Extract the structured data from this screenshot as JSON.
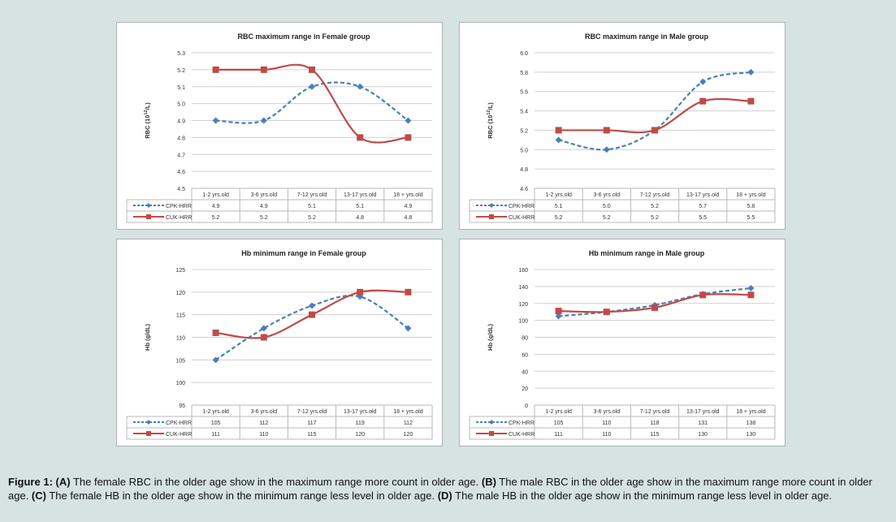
{
  "chart_data": [
    {
      "type": "line",
      "title": "RBC  maximum range in Female group",
      "ylabel": "RBC  (10^12/L)",
      "ylabel_base": "RBC  (10",
      "ylabel_sup": "12",
      "ylabel_end": "/L)",
      "ylim": [
        4.5,
        5.3
      ],
      "yticks": [
        "4.5",
        "4.6",
        "4.7",
        "4.8",
        "4.9",
        "5.0",
        "5.1",
        "5.2",
        "5.3"
      ],
      "categories": [
        "1-2 yrs.old",
        "3-6 yrs.old",
        "7-12 yrs.old",
        "13-17 yrs.old",
        "18 + yrs.old"
      ],
      "grid": true,
      "series": [
        {
          "name": "CPK-HRR",
          "color": "#4a7ebb",
          "dashed": true,
          "marker": "diamond",
          "values": [
            4.9,
            4.9,
            5.1,
            5.1,
            4.9
          ],
          "labels": [
            "4.9",
            "4.9",
            "5.1",
            "5.1",
            "4.9"
          ]
        },
        {
          "name": "CUK-HRR",
          "color": "#be4b48",
          "dashed": false,
          "marker": "square",
          "values": [
            5.2,
            5.2,
            5.2,
            4.8,
            4.8
          ],
          "labels": [
            "5.2",
            "5.2",
            "5.2",
            "4.8",
            "4.8"
          ]
        }
      ]
    },
    {
      "type": "line",
      "title": "RBC maximum range in  Male group",
      "ylabel": "RBC (10^12/L)",
      "ylabel_base": "RBC (10",
      "ylabel_sup": "12",
      "ylabel_end": "/L)",
      "ylim": [
        4.6,
        6.0
      ],
      "yticks": [
        "4.6",
        "4.8",
        "5.0",
        "5.2",
        "5.4",
        "5.6",
        "5.8",
        "6.0"
      ],
      "categories": [
        "1-2 yrs.old",
        "3-6 yrs.old",
        "7-12 yrs.old",
        "13-17 yrs.old",
        "18 + yrs.old"
      ],
      "grid": true,
      "series": [
        {
          "name": "CPK-HRR",
          "color": "#4a7ebb",
          "dashed": true,
          "marker": "diamond",
          "values": [
            5.1,
            5.0,
            5.2,
            5.7,
            5.8
          ],
          "labels": [
            "5.1",
            "5.0",
            "5.2",
            "5.7",
            "5.8"
          ]
        },
        {
          "name": "CUK-HRR",
          "color": "#be4b48",
          "dashed": false,
          "marker": "square",
          "values": [
            5.2,
            5.2,
            5.2,
            5.5,
            5.5
          ],
          "labels": [
            "5.2",
            "5.2",
            "5.2",
            "5.5",
            "5.5"
          ]
        }
      ]
    },
    {
      "type": "line",
      "title": "Hb minimum range in Female group",
      "ylabel": "Hb  (g/dL)",
      "ylabel_base": "Hb  (g/dL)",
      "ylabel_sup": "",
      "ylabel_end": "",
      "ylim": [
        95,
        125
      ],
      "yticks": [
        "95",
        "100",
        "105",
        "110",
        "115",
        "120",
        "125"
      ],
      "categories": [
        "1-2 yrs.old",
        "3-6 yrs.old",
        "7-12 yrs.old",
        "13-17 yrs.old",
        "18 + yrs.old"
      ],
      "grid": true,
      "series": [
        {
          "name": "CPK-HRR",
          "color": "#4a7ebb",
          "dashed": true,
          "marker": "diamond",
          "values": [
            105,
            112,
            117,
            119,
            112
          ],
          "labels": [
            "105",
            "112",
            "117",
            "119",
            "112"
          ]
        },
        {
          "name": "CUK-HRR",
          "color": "#be4b48",
          "dashed": false,
          "marker": "square",
          "values": [
            111,
            110,
            115,
            120,
            120
          ],
          "labels": [
            "111",
            "110",
            "115",
            "120",
            "120"
          ]
        }
      ]
    },
    {
      "type": "line",
      "title": "Hb minimum range in Male group",
      "ylabel": "Hb (g/dL)",
      "ylabel_base": "Hb (g/dL)",
      "ylabel_sup": "",
      "ylabel_end": "",
      "ylim": [
        0,
        160
      ],
      "yticks": [
        "0",
        "20",
        "40",
        "60",
        "80",
        "100",
        "120",
        "140",
        "160"
      ],
      "categories": [
        "1-2 yrs.old",
        "3-6 yrs.old",
        "7-12 yrs.old",
        "13-17 yrs.old",
        "18 + yrs.old"
      ],
      "grid": true,
      "series": [
        {
          "name": "CPK-HRR",
          "color": "#4a7ebb",
          "dashed": true,
          "marker": "diamond",
          "values": [
            105,
            110,
            118,
            131,
            138
          ],
          "labels": [
            "105",
            "110",
            "118",
            "131",
            "138"
          ]
        },
        {
          "name": "CUK-HRR",
          "color": "#be4b48",
          "dashed": false,
          "marker": "square",
          "values": [
            111,
            110,
            115,
            130,
            130
          ],
          "labels": [
            "111",
            "110",
            "115",
            "130",
            "130"
          ]
        }
      ]
    }
  ],
  "caption": {
    "parts": [
      {
        "b": true,
        "t": "Figure 1: "
      },
      {
        "b": true,
        "t": "(A)"
      },
      {
        "b": false,
        "t": " The female RBC in the older age show  in the maximum range more count in older age. "
      },
      {
        "b": true,
        "t": "(B)"
      },
      {
        "b": false,
        "t": " The male RBC in the older age show  in the maximum range more count in older age. "
      },
      {
        "b": true,
        "t": "(C)"
      },
      {
        "b": false,
        "t": "  The female HB in the older age show  in the minimum range less level in older age. "
      },
      {
        "b": true,
        "t": "(D)"
      },
      {
        "b": false,
        "t": " The male HB in the older age show  in the minimum range less level in older age."
      }
    ]
  }
}
